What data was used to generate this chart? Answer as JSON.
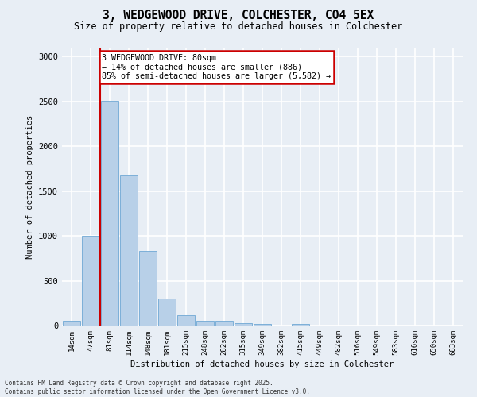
{
  "title_line1": "3, WEDGEWOOD DRIVE, COLCHESTER, CO4 5EX",
  "title_line2": "Size of property relative to detached houses in Colchester",
  "xlabel": "Distribution of detached houses by size in Colchester",
  "ylabel": "Number of detached properties",
  "categories": [
    "14sqm",
    "47sqm",
    "81sqm",
    "114sqm",
    "148sqm",
    "181sqm",
    "215sqm",
    "248sqm",
    "282sqm",
    "315sqm",
    "349sqm",
    "382sqm",
    "415sqm",
    "449sqm",
    "482sqm",
    "516sqm",
    "549sqm",
    "583sqm",
    "616sqm",
    "650sqm",
    "683sqm"
  ],
  "values": [
    50,
    1005,
    2505,
    1670,
    835,
    300,
    115,
    52,
    50,
    30,
    20,
    0,
    20,
    0,
    0,
    0,
    0,
    0,
    0,
    0,
    0
  ],
  "bar_color": "#b8d0e8",
  "bar_edge_color": "#6fa8d4",
  "vline_x": 1.5,
  "annotation_line1": "3 WEDGEWOOD DRIVE: 80sqm",
  "annotation_line2": "← 14% of detached houses are smaller (886)",
  "annotation_line3": "85% of semi-detached houses are larger (5,582) →",
  "annotation_box_color": "#ffffff",
  "annotation_box_edge": "#cc0000",
  "vline_color": "#cc0000",
  "ylim": [
    0,
    3100
  ],
  "yticks": [
    0,
    500,
    1000,
    1500,
    2000,
    2500,
    3000
  ],
  "background_color": "#e8eef5",
  "grid_color": "#ffffff",
  "footer_line1": "Contains HM Land Registry data © Crown copyright and database right 2025.",
  "footer_line2": "Contains public sector information licensed under the Open Government Licence v3.0."
}
